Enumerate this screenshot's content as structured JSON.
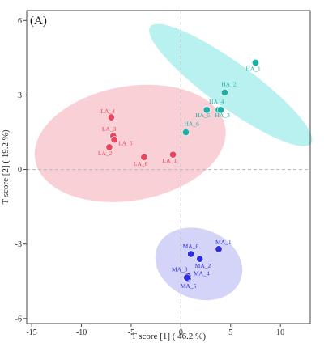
{
  "chart_data": {
    "type": "scatter",
    "panel_label": "(A)",
    "xlabel": "T score [1] ( 46.2 %)",
    "ylabel": "T score [2] ( 19.2 %)",
    "xlim": [
      -15.5,
      13
    ],
    "ylim": [
      -6.2,
      6.4
    ],
    "xticks": [
      -15,
      -10,
      -5,
      0,
      5,
      10
    ],
    "yticks": [
      -6,
      -3,
      0,
      3,
      6
    ],
    "xtick_labels": [
      "-15",
      "-10",
      "-5",
      "0",
      "5",
      "10"
    ],
    "ytick_labels": [
      "-6",
      "-3",
      "0",
      "3",
      "6"
    ],
    "reference_lines": {
      "x": 0,
      "y": 0
    },
    "groups": [
      {
        "color": "#e8465e",
        "ellipse_color": "#f6a9b6",
        "points": [
          {
            "label": "LA_4",
            "x": -7.0,
            "y": 2.1
          },
          {
            "label": "LA_3",
            "x": -6.8,
            "y": 1.35
          },
          {
            "label": "LA_5",
            "x": -6.7,
            "y": 1.2
          },
          {
            "label": "LA_2",
            "x": -7.2,
            "y": 0.9
          },
          {
            "label": "LA_6",
            "x": -3.7,
            "y": 0.5
          },
          {
            "label": "LA_1",
            "x": -0.8,
            "y": 0.6
          }
        ],
        "ellipse": {
          "cx": -5.1,
          "cy": 1.05,
          "rx": 9.7,
          "ry": 2.3,
          "angle": -10
        }
      },
      {
        "color": "#1ab0a5",
        "ellipse_color": "#7fe3e4",
        "points": [
          {
            "label": "HA_1",
            "x": 7.5,
            "y": 4.3
          },
          {
            "label": "HA_2",
            "x": 4.4,
            "y": 3.1
          },
          {
            "label": "HA_4",
            "x": 3.8,
            "y": 2.4
          },
          {
            "label": "HA_5",
            "x": 2.6,
            "y": 2.4
          },
          {
            "label": "HA_3",
            "x": 4.0,
            "y": 2.4
          },
          {
            "label": "HA_6",
            "x": 0.5,
            "y": 1.5
          }
        ],
        "ellipse": {
          "cx": 5.0,
          "cy": 3.4,
          "rx": 10.0,
          "ry": 0.9,
          "angle": 36
        }
      },
      {
        "color": "#2d2ce0",
        "ellipse_color": "#b0b0f2",
        "points": [
          {
            "label": "MA_1",
            "x": 3.8,
            "y": -3.2
          },
          {
            "label": "MA_6",
            "x": 1.0,
            "y": -3.4
          },
          {
            "label": "MA_2",
            "x": 1.9,
            "y": -3.6
          },
          {
            "label": "MA_3",
            "x": 0.7,
            "y": -4.3
          },
          {
            "label": "MA_4",
            "x": 0.7,
            "y": -4.4
          },
          {
            "label": "MA_5",
            "x": 0.6,
            "y": -4.35
          }
        ],
        "ellipse": {
          "cx": 1.8,
          "cy": -3.8,
          "rx": 4.5,
          "ry": 1.4,
          "angle": 22
        }
      }
    ]
  }
}
